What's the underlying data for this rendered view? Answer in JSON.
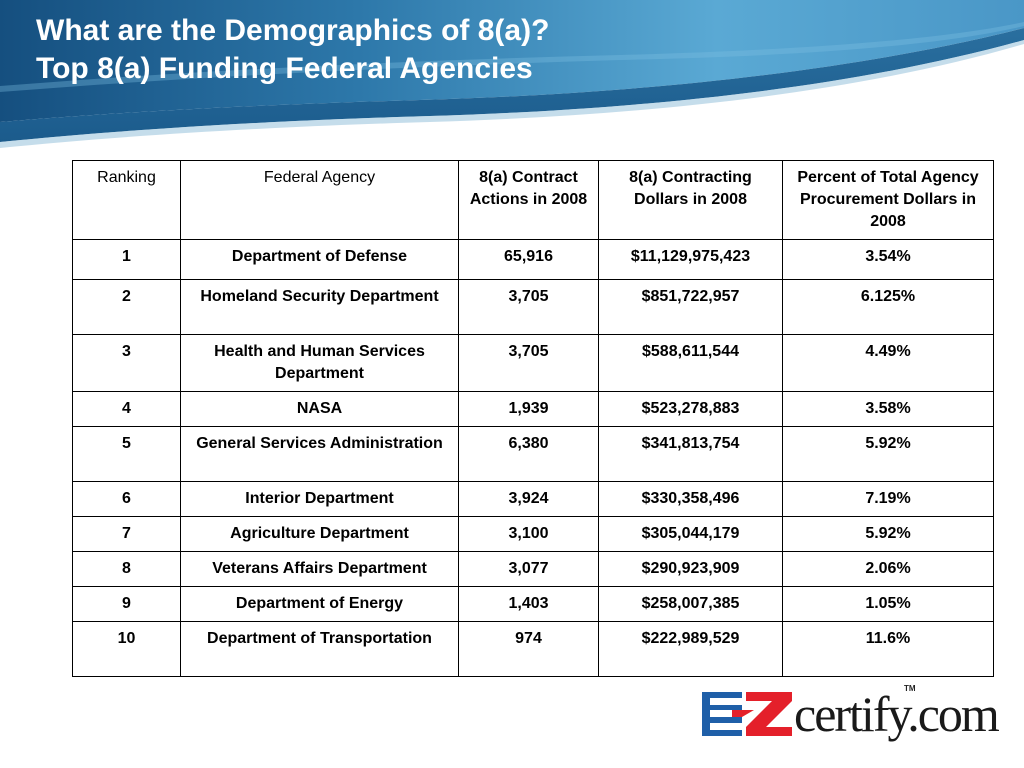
{
  "title": {
    "line1": "What are the Demographics of 8(a)?",
    "line2": "Top 8(a) Funding Federal Agencies"
  },
  "table": {
    "headers": [
      "Ranking",
      "Federal Agency",
      "8(a) Contract Actions in 2008",
      "8(a) Contracting Dollars in 2008",
      "Percent of Total Agency Procurement Dollars in 2008"
    ],
    "rows": [
      {
        "rank": "1",
        "agency": "Department of Defense",
        "actions": "65,916",
        "dollars": "$11,129,975,423",
        "percent": "3.54%"
      },
      {
        "rank": "2",
        "agency": "Homeland Security Department",
        "actions": "3,705",
        "dollars": "$851,722,957",
        "percent": "6.125%"
      },
      {
        "rank": "3",
        "agency": "Health and Human Services Department",
        "actions": "3,705",
        "dollars": "$588,611,544",
        "percent": "4.49%"
      },
      {
        "rank": "4",
        "agency": "NASA",
        "actions": "1,939",
        "dollars": "$523,278,883",
        "percent": "3.58%"
      },
      {
        "rank": "5",
        "agency": "General Services Administration",
        "actions": "6,380",
        "dollars": "$341,813,754",
        "percent": "5.92%"
      },
      {
        "rank": "6",
        "agency": "Interior Department",
        "actions": "3,924",
        "dollars": "$330,358,496",
        "percent": "7.19%"
      },
      {
        "rank": "7",
        "agency": "Agriculture Department",
        "actions": "3,100",
        "dollars": "$305,044,179",
        "percent": "5.92%"
      },
      {
        "rank": "8",
        "agency": "Veterans Affairs Department",
        "actions": "3,077",
        "dollars": "$290,923,909",
        "percent": "2.06%"
      },
      {
        "rank": "9",
        "agency": "Department of Energy",
        "actions": "1,403",
        "dollars": "$258,007,385",
        "percent": "1.05%"
      },
      {
        "rank": "10",
        "agency": "Department of Transportation",
        "actions": "974",
        "dollars": "$222,989,529",
        "percent": "11.6%"
      }
    ]
  },
  "logo": {
    "text": "certify.com",
    "tm": "TM",
    "colors": {
      "red": "#e4202a",
      "blue": "#1f5fa8"
    }
  },
  "colors": {
    "header_dark": "#1b5b8c",
    "header_light": "#5aa9d4"
  }
}
